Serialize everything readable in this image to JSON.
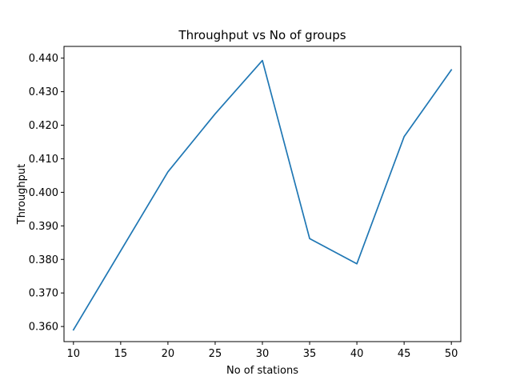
{
  "chart_data": {
    "type": "line",
    "title": "Throughput vs No of groups",
    "xlabel": "No of stations",
    "ylabel": "Throughput",
    "x": [
      10,
      20,
      25,
      30,
      35,
      40,
      45,
      50
    ],
    "series": [
      {
        "values": [
          0.359,
          0.4061,
          0.4234,
          0.4393,
          0.3862,
          0.3787,
          0.4166,
          0.4365
        ],
        "color": "#1f77b4"
      }
    ],
    "xlim": [
      9,
      51
    ],
    "ylim": [
      0.3555,
      0.4435
    ],
    "xticks": [
      10,
      15,
      20,
      25,
      30,
      35,
      40,
      45,
      50
    ],
    "yticks": [
      0.36,
      0.37,
      0.38,
      0.39,
      0.4,
      0.41,
      0.42,
      0.43,
      0.44
    ],
    "xtick_labels": [
      "10",
      "15",
      "20",
      "25",
      "30",
      "35",
      "40",
      "45",
      "50"
    ],
    "ytick_labels": [
      "0.360",
      "0.370",
      "0.380",
      "0.390",
      "0.400",
      "0.410",
      "0.420",
      "0.430",
      "0.440"
    ],
    "grid": false,
    "legend": "none"
  }
}
